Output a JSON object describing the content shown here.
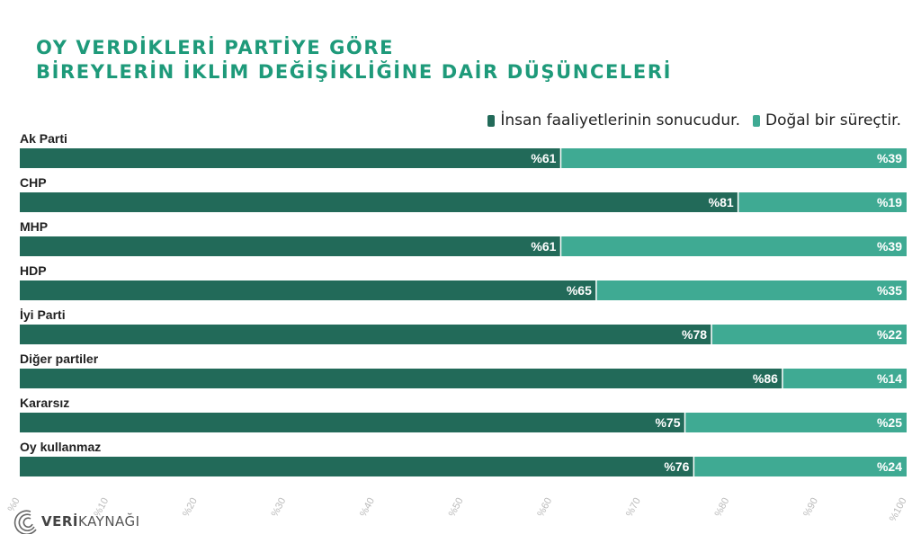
{
  "title_lines": [
    "OY VERDİKLERİ PARTİYE GÖRE",
    "BİREYLERİN İKLİM DEĞİŞİKLİĞİNE DAİR DÜŞÜNCELERİ"
  ],
  "logo": {
    "part1": "VERİ",
    "part2": " KAYNAĞI"
  },
  "colors": {
    "human": "#226a59",
    "natural": "#3faa93",
    "title": "#1e9a7a"
  },
  "chart_data": {
    "type": "bar",
    "orientation": "horizontal",
    "stacked": true,
    "categories": [
      "Ak Parti",
      "CHP",
      "MHP",
      "HDP",
      "İyi Parti",
      "Diğer partiler",
      "Kararsız",
      "Oy kullanmaz"
    ],
    "series": [
      {
        "name": "İnsan faaliyetlerinin sonucudur.",
        "values": [
          61,
          81,
          61,
          65,
          78,
          86,
          75,
          76
        ],
        "labels": [
          "%61",
          "%81",
          "%61",
          "%65",
          "%78",
          "%86",
          "%75",
          "%76"
        ]
      },
      {
        "name": "Doğal bir süreçtir.",
        "values": [
          39,
          19,
          39,
          35,
          22,
          14,
          25,
          24
        ],
        "labels": [
          "%39",
          "%19",
          "%39",
          "%35",
          "%22",
          "%14",
          "%25",
          "%24"
        ]
      }
    ],
    "xlim": [
      0,
      100
    ],
    "xticks": [
      "%0",
      "%10",
      "%20",
      "%30",
      "%40",
      "%50",
      "%60",
      "%70",
      "%80",
      "%90",
      "%100"
    ],
    "legend_position": "top-right",
    "grid": false
  }
}
